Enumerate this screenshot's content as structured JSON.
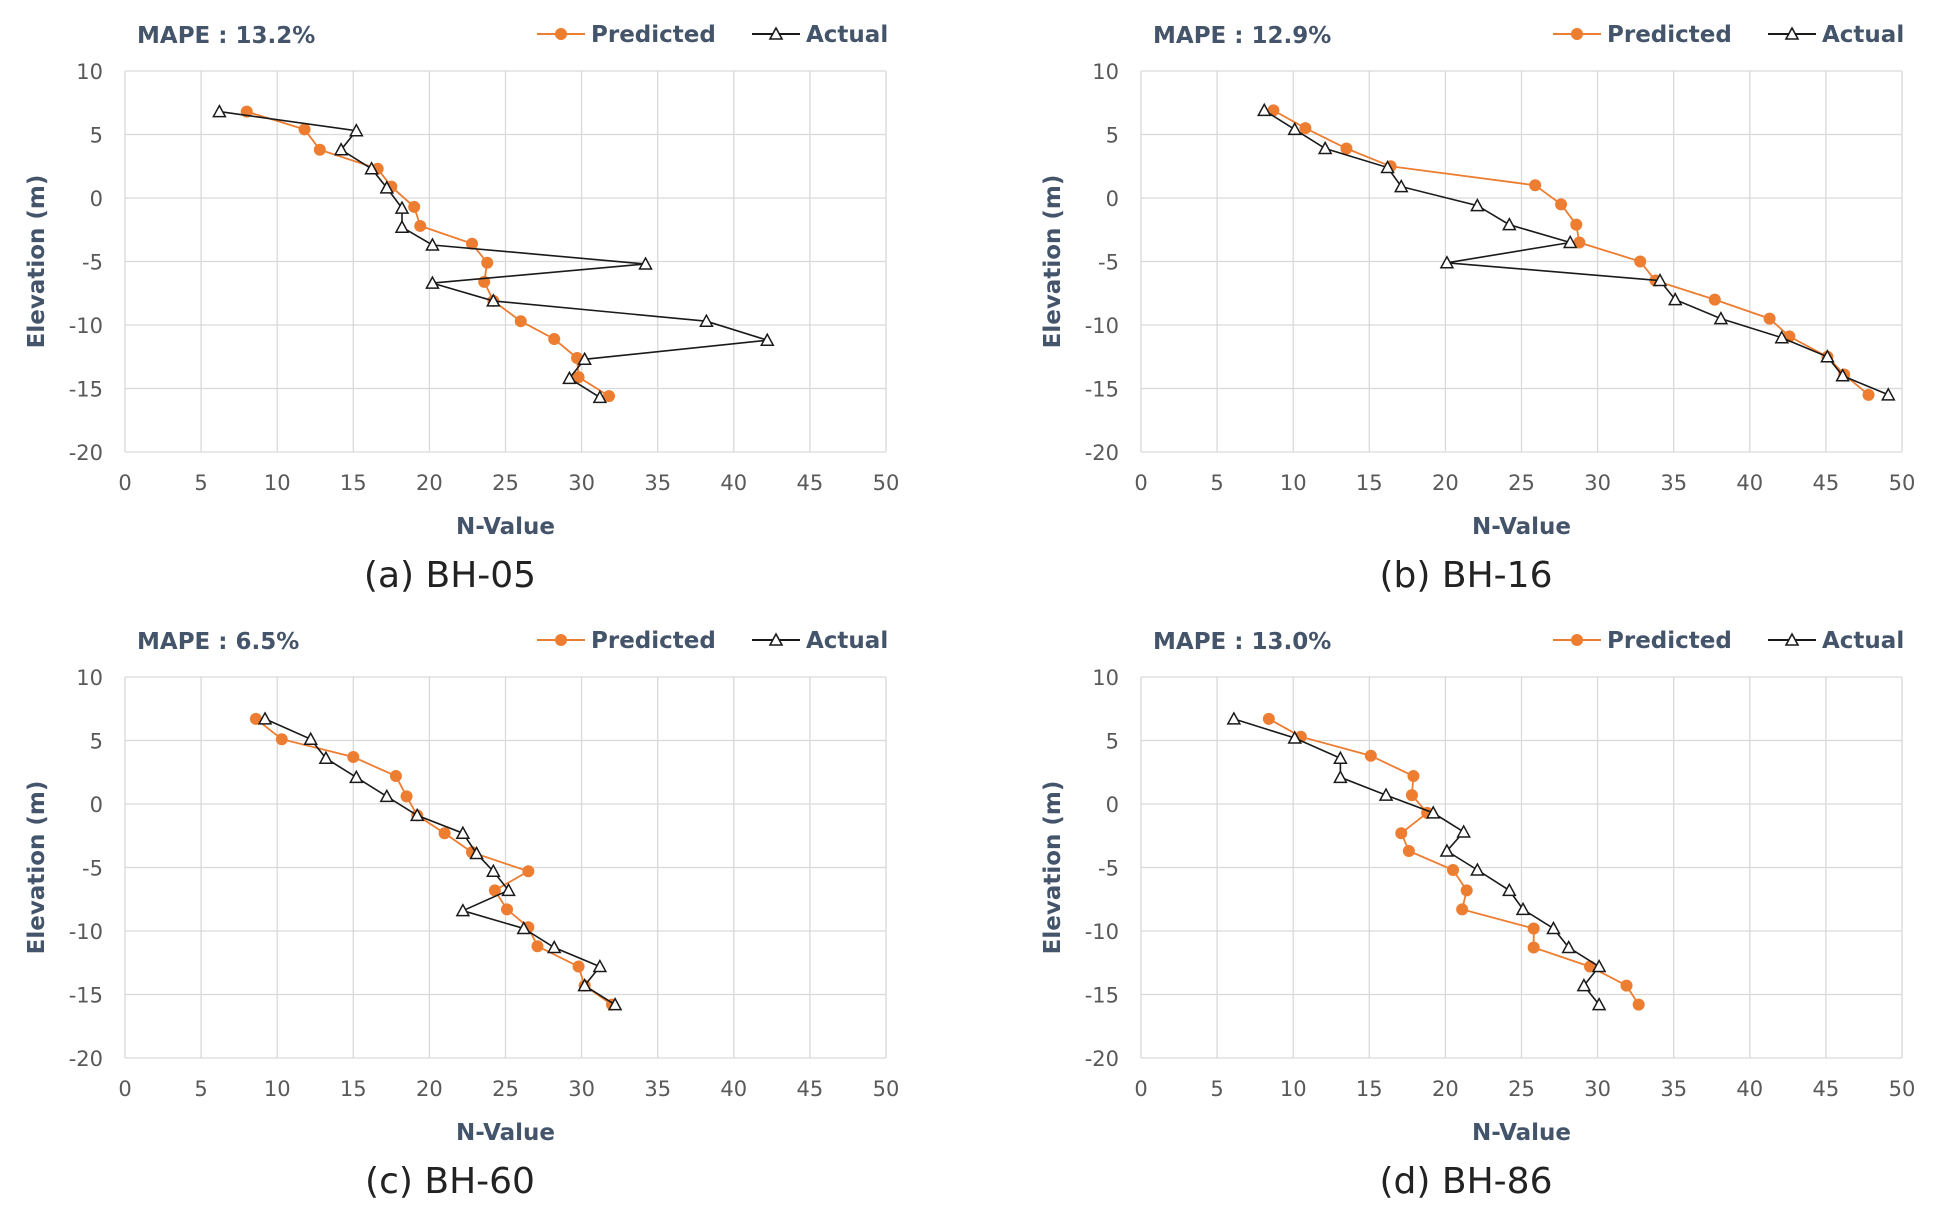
{
  "colors": {
    "predicted": "#ED7D31",
    "actual": "#1a1a1a",
    "grid": "#D9D9D9",
    "text": "#595959",
    "label": "#44546A"
  },
  "chart_data": [
    {
      "type": "line",
      "caption": "(a) BH-05",
      "mape_label": "MAPE : 13.2%",
      "xlabel": "N-Value",
      "ylabel": "Elevation (m)",
      "xlim": [
        0,
        50
      ],
      "ylim": [
        -20,
        10
      ],
      "xticks": [
        "0",
        "5",
        "10",
        "15",
        "20",
        "25",
        "30",
        "35",
        "40",
        "45",
        "50"
      ],
      "yticks": [
        "10",
        "5",
        "0",
        "-5",
        "-10",
        "-15",
        "-20"
      ],
      "legend": [
        "Predicted",
        "Actual"
      ],
      "series": [
        {
          "name": "Predicted",
          "points": [
            [
              8,
              6.8
            ],
            [
              11.8,
              5.4
            ],
            [
              12.8,
              3.8
            ],
            [
              16.6,
              2.3
            ],
            [
              17.5,
              0.9
            ],
            [
              19,
              -0.7
            ],
            [
              19.4,
              -2.2
            ],
            [
              22.8,
              -3.6
            ],
            [
              23.8,
              -5.1
            ],
            [
              23.6,
              -6.6
            ],
            [
              24.2,
              -8.1
            ],
            [
              26,
              -9.7
            ],
            [
              28.2,
              -11.1
            ],
            [
              29.7,
              -12.6
            ],
            [
              29.8,
              -14.1
            ],
            [
              31.8,
              -15.6
            ]
          ]
        },
        {
          "name": "Actual",
          "points": [
            [
              6.2,
              6.8
            ],
            [
              15.2,
              5.3
            ],
            [
              14.2,
              3.8
            ],
            [
              16.2,
              2.3
            ],
            [
              17.2,
              0.8
            ],
            [
              18.2,
              -0.8
            ],
            [
              18.2,
              -2.3
            ],
            [
              20.2,
              -3.7
            ],
            [
              34.2,
              -5.2
            ],
            [
              20.2,
              -6.7
            ],
            [
              24.2,
              -8.1
            ],
            [
              38.2,
              -9.7
            ],
            [
              42.2,
              -11.2
            ],
            [
              30.2,
              -12.7
            ],
            [
              29.2,
              -14.2
            ],
            [
              31.2,
              -15.7
            ]
          ]
        }
      ]
    },
    {
      "type": "line",
      "caption": "(b) BH-16",
      "mape_label": "MAPE : 12.9%",
      "xlabel": "N-Value",
      "ylabel": "Elevation (m)",
      "xlim": [
        0,
        50
      ],
      "ylim": [
        -20,
        10
      ],
      "xticks": [
        "0",
        "5",
        "10",
        "15",
        "20",
        "25",
        "30",
        "35",
        "40",
        "45",
        "50"
      ],
      "yticks": [
        "10",
        "5",
        "0",
        "-5",
        "-10",
        "-15",
        "-20"
      ],
      "legend": [
        "Predicted",
        "Actual"
      ],
      "series": [
        {
          "name": "Predicted",
          "points": [
            [
              8.7,
              6.9
            ],
            [
              10.8,
              5.5
            ],
            [
              13.5,
              3.9
            ],
            [
              16.4,
              2.5
            ],
            [
              25.9,
              1
            ],
            [
              27.6,
              -0.5
            ],
            [
              28.6,
              -2.1
            ],
            [
              28.8,
              -3.5
            ],
            [
              32.8,
              -5
            ],
            [
              33.8,
              -6.5
            ],
            [
              37.7,
              -8
            ],
            [
              41.3,
              -9.5
            ],
            [
              42.6,
              -10.9
            ],
            [
              45.1,
              -12.5
            ],
            [
              46.2,
              -13.9
            ],
            [
              47.8,
              -15.5
            ]
          ]
        },
        {
          "name": "Actual",
          "points": [
            [
              8.1,
              6.9
            ],
            [
              10.1,
              5.4
            ],
            [
              12.1,
              3.9
            ],
            [
              16.2,
              2.4
            ],
            [
              17.1,
              0.9
            ],
            [
              22.1,
              -0.6
            ],
            [
              24.2,
              -2.1
            ],
            [
              28.2,
              -3.5
            ],
            [
              20.1,
              -5.1
            ],
            [
              34.1,
              -6.5
            ],
            [
              35.1,
              -8
            ],
            [
              38.1,
              -9.5
            ],
            [
              42.1,
              -11
            ],
            [
              45.1,
              -12.5
            ],
            [
              46.1,
              -14
            ],
            [
              49.1,
              -15.5
            ]
          ]
        }
      ]
    },
    {
      "type": "line",
      "caption": "(c) BH-60",
      "mape_label": "MAPE : 6.5%",
      "xlabel": "N-Value",
      "ylabel": "Elevation (m)",
      "xlim": [
        0,
        50
      ],
      "ylim": [
        -20,
        10
      ],
      "xticks": [
        "0",
        "5",
        "10",
        "15",
        "20",
        "25",
        "30",
        "35",
        "40",
        "45",
        "50"
      ],
      "yticks": [
        "10",
        "5",
        "0",
        "-5",
        "-10",
        "-15",
        "-20"
      ],
      "legend": [
        "Predicted",
        "Actual"
      ],
      "series": [
        {
          "name": "Predicted",
          "points": [
            [
              8.6,
              6.7
            ],
            [
              10.3,
              5.1
            ],
            [
              15,
              3.7
            ],
            [
              17.8,
              2.2
            ],
            [
              18.5,
              0.6
            ],
            [
              19.2,
              -0.9
            ],
            [
              21,
              -2.3
            ],
            [
              22.8,
              -3.8
            ],
            [
              26.5,
              -5.3
            ],
            [
              24.3,
              -6.8
            ],
            [
              25.1,
              -8.3
            ],
            [
              26.5,
              -9.7
            ],
            [
              27.1,
              -11.2
            ],
            [
              29.8,
              -12.8
            ],
            [
              30.2,
              -14.3
            ],
            [
              32,
              -15.8
            ]
          ]
        },
        {
          "name": "Actual",
          "points": [
            [
              9.2,
              6.7
            ],
            [
              12.2,
              5.1
            ],
            [
              13.2,
              3.6
            ],
            [
              15.2,
              2.1
            ],
            [
              17.2,
              0.6
            ],
            [
              19.2,
              -0.9
            ],
            [
              22.2,
              -2.3
            ],
            [
              23.1,
              -3.9
            ],
            [
              24.2,
              -5.3
            ],
            [
              25.2,
              -6.8
            ],
            [
              22.2,
              -8.4
            ],
            [
              26.2,
              -9.8
            ],
            [
              28.2,
              -11.3
            ],
            [
              31.2,
              -12.8
            ],
            [
              30.2,
              -14.3
            ],
            [
              32.2,
              -15.8
            ]
          ]
        }
      ]
    },
    {
      "type": "line",
      "caption": "(d) BH-86",
      "mape_label": "MAPE : 13.0%",
      "xlabel": "N-Value",
      "ylabel": "Elevation (m)",
      "xlim": [
        0,
        50
      ],
      "ylim": [
        -20,
        10
      ],
      "xticks": [
        "0",
        "5",
        "10",
        "15",
        "20",
        "25",
        "30",
        "35",
        "40",
        "45",
        "50"
      ],
      "yticks": [
        "10",
        "5",
        "0",
        "-5",
        "-10",
        "-15",
        "-20"
      ],
      "legend": [
        "Predicted",
        "Actual"
      ],
      "series": [
        {
          "name": "Predicted",
          "points": [
            [
              8.4,
              6.7
            ],
            [
              10.5,
              5.3
            ],
            [
              15.1,
              3.8
            ],
            [
              17.9,
              2.2
            ],
            [
              17.8,
              0.7
            ],
            [
              18.8,
              -0.7
            ],
            [
              17.1,
              -2.3
            ],
            [
              17.6,
              -3.7
            ],
            [
              20.5,
              -5.2
            ],
            [
              21.4,
              -6.8
            ],
            [
              21.1,
              -8.3
            ],
            [
              25.8,
              -9.8
            ],
            [
              25.8,
              -11.3
            ],
            [
              29.5,
              -12.8
            ],
            [
              31.9,
              -14.3
            ],
            [
              32.7,
              -15.8
            ]
          ]
        },
        {
          "name": "Actual",
          "points": [
            [
              6.1,
              6.7
            ],
            [
              10.1,
              5.2
            ],
            [
              13.1,
              3.6
            ],
            [
              13.1,
              2.1
            ],
            [
              16.1,
              0.7
            ],
            [
              19.2,
              -0.7
            ],
            [
              21.2,
              -2.2
            ],
            [
              20.1,
              -3.7
            ],
            [
              22.1,
              -5.2
            ],
            [
              24.2,
              -6.8
            ],
            [
              25.1,
              -8.3
            ],
            [
              27.1,
              -9.8
            ],
            [
              28.1,
              -11.3
            ],
            [
              30.1,
              -12.8
            ],
            [
              29.1,
              -14.3
            ],
            [
              30.1,
              -15.8
            ]
          ]
        }
      ]
    }
  ]
}
